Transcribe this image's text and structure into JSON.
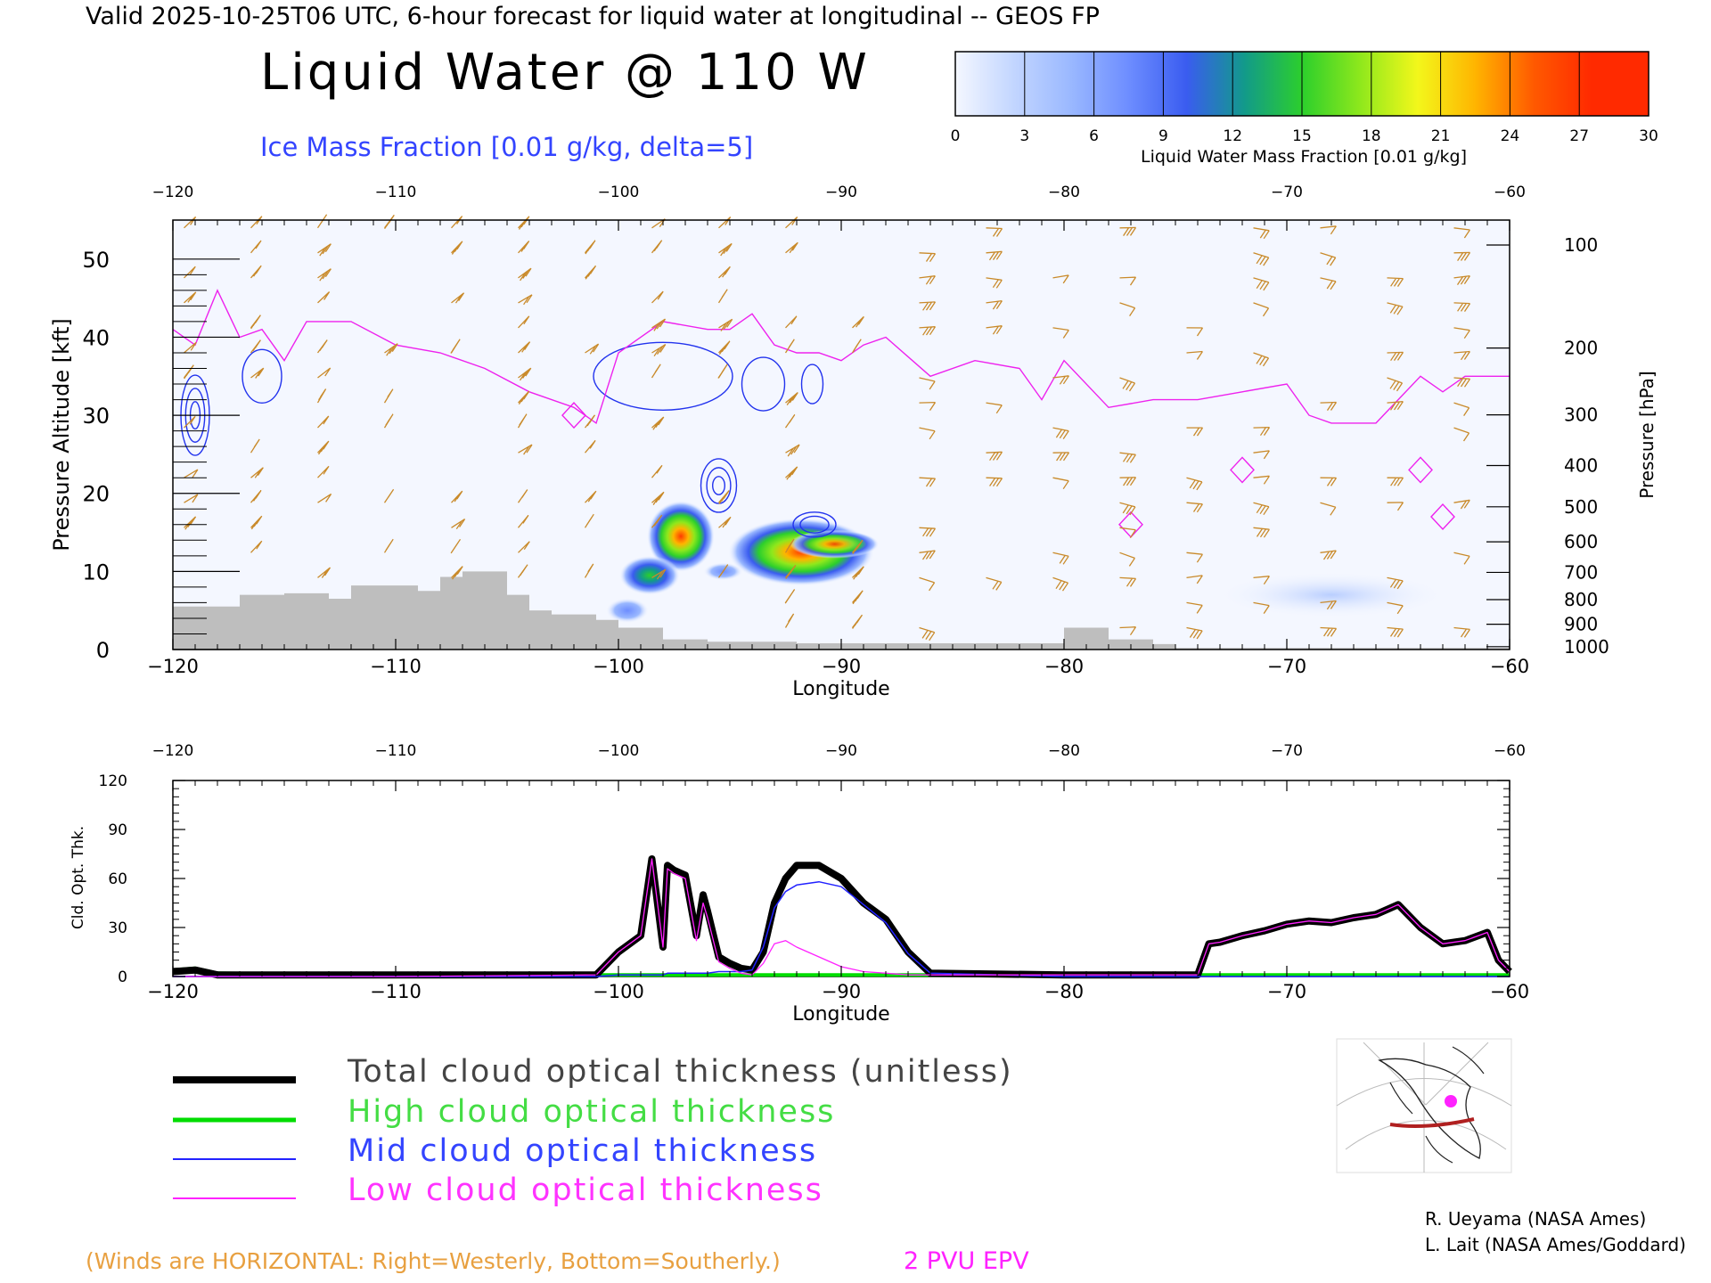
{
  "header": {
    "valid_line": "Valid 2025-10-25T06 UTC, 6-hour forecast for liquid water at longitudinal -- GEOS FP",
    "title": "Liquid Water @ 110 W",
    "ice_label": "Ice Mass Fraction [0.01 g/kg, delta=5]"
  },
  "colorbar": {
    "ticks": [
      "0",
      "3",
      "6",
      "9",
      "12",
      "15",
      "18",
      "21",
      "24",
      "27",
      "30"
    ],
    "label": "Liquid Water Mass Fraction [0.01 g/kg]",
    "colors": [
      "#f4f7ff",
      "#c3d6ff",
      "#9ab8ff",
      "#6d8dff",
      "#3a5cf0",
      "#129a8a",
      "#2ccf2c",
      "#8ee81c",
      "#f3f71b",
      "#ffb400",
      "#ff5a00"
    ]
  },
  "chart_data": [
    {
      "type": "heatmap",
      "name": "cross-section",
      "x_axis": {
        "label": "Longitude",
        "range": [
          -120,
          -60
        ],
        "ticks": [
          "−120",
          "−110",
          "−100",
          "−90",
          "−80",
          "−70",
          "−60"
        ]
      },
      "y_axis_left": {
        "label": "Pressure Altitude [kft]",
        "range": [
          0,
          55
        ],
        "ticks": [
          "0",
          "10",
          "20",
          "30",
          "40",
          "50"
        ]
      },
      "y_axis_right": {
        "label": "Pressure [hPa]",
        "ticks": [
          "100",
          "200",
          "300",
          "400",
          "500",
          "600",
          "700",
          "800",
          "900",
          "1000"
        ]
      },
      "liquid_water_blobs": [
        {
          "lon": -97.2,
          "alt": 14.5,
          "max": 24
        },
        {
          "lon": -98.6,
          "alt": 9.5,
          "max": 14
        },
        {
          "lon": -91.8,
          "alt": 12.5,
          "max": 27
        },
        {
          "lon": -99.6,
          "alt": 5,
          "max": 9
        },
        {
          "lon": -68.0,
          "alt": 7,
          "max": 5
        }
      ],
      "ice_contours": [
        {
          "lon": -119,
          "alt": 30
        },
        {
          "lon": -116,
          "alt": 35
        },
        {
          "lon": -98,
          "alt": 35
        },
        {
          "lon": -95.5,
          "alt": 21
        },
        {
          "lon": -93.5,
          "alt": 34
        },
        {
          "lon": -91.3,
          "alt": 34
        },
        {
          "lon": -91.2,
          "alt": 16
        }
      ],
      "pv2_line": {
        "lon": [
          -120,
          -119,
          -118,
          -117,
          -116,
          -115,
          -114,
          -112,
          -110,
          -108,
          -106,
          -104,
          -102,
          -101,
          -100,
          -98,
          -96,
          -95,
          -94,
          -93,
          -92,
          -91,
          -90,
          -89,
          -88,
          -86,
          -84,
          -82,
          -81,
          -80,
          -78,
          -76,
          -74,
          -72,
          -70,
          -69,
          -68,
          -66,
          -64,
          -63,
          -62,
          -60
        ],
        "alt": [
          41,
          39,
          46,
          40,
          41,
          37,
          42,
          42,
          39,
          38,
          36,
          33,
          31,
          29,
          38,
          42,
          41,
          41,
          43,
          39,
          38,
          38,
          37,
          39,
          40,
          35,
          37,
          36,
          32,
          37,
          31,
          32,
          32,
          33,
          34,
          30,
          29,
          29,
          35,
          33,
          35,
          35
        ]
      },
      "terrain": {
        "lon": [
          -120,
          -119,
          -117,
          -115,
          -113,
          -112,
          -110,
          -109,
          -108,
          -107,
          -106,
          -105,
          -104,
          -103,
          -101,
          -100,
          -98,
          -96,
          -94,
          -92,
          -88,
          -85,
          -80,
          -79,
          -78,
          -76,
          -75,
          -60
        ],
        "alt": [
          5.5,
          5.5,
          7,
          7.2,
          6.5,
          8.2,
          8.2,
          7.5,
          9.3,
          10,
          10,
          7,
          5,
          4.5,
          3.8,
          2.8,
          1.3,
          1,
          1,
          0.8,
          0.8,
          0.8,
          2.8,
          2.8,
          1.3,
          0.7,
          0.2,
          0
        ]
      },
      "wind_note": "(Winds are HORIZONTAL: Right=Westerly, Bottom=Southerly.)",
      "pv_note": "2 PVU EPV"
    },
    {
      "type": "line",
      "name": "cloud-optical-thickness",
      "x_axis": {
        "label": "Longitude",
        "range": [
          -120,
          -60
        ],
        "ticks": [
          "−120",
          "−110",
          "−100",
          "−90",
          "−80",
          "−70",
          "−60"
        ]
      },
      "y_axis": {
        "label": "Cld. Opt. Thk.",
        "range": [
          0,
          120
        ],
        "ticks": [
          "0",
          "30",
          "60",
          "90",
          "120"
        ]
      },
      "x": [
        -120,
        -119,
        -118,
        -110,
        -101,
        -100,
        -99,
        -98.5,
        -98,
        -97.8,
        -97.5,
        -97,
        -96.5,
        -96.2,
        -96,
        -95.5,
        -95,
        -94.5,
        -94,
        -93.5,
        -93,
        -92.5,
        -92,
        -91,
        -90,
        -89,
        -88,
        -87,
        -86,
        -80,
        -74,
        -73.5,
        -73,
        -72,
        -71,
        -70,
        -69,
        -68,
        -67,
        -66,
        -65,
        -64,
        -63,
        -62,
        -61,
        -60.5,
        -60
      ],
      "series": [
        {
          "name": "Total cloud optical thickness (unitless)",
          "color": "#000000",
          "values": [
            3,
            4,
            1,
            1,
            1,
            15,
            25,
            72,
            18,
            68,
            65,
            62,
            25,
            50,
            40,
            12,
            8,
            5,
            4,
            15,
            45,
            60,
            68,
            68,
            60,
            45,
            35,
            15,
            2,
            1,
            1,
            20,
            21,
            25,
            28,
            32,
            34,
            33,
            36,
            38,
            44,
            30,
            20,
            22,
            27,
            10,
            3
          ]
        },
        {
          "name": "High cloud optical thickness",
          "color": "#00dd00",
          "values": [
            4,
            5,
            2,
            1,
            1,
            1,
            1,
            1,
            1,
            1,
            1,
            1,
            1,
            1,
            1,
            1,
            1,
            1,
            1,
            1,
            1,
            1,
            1,
            1,
            1,
            1,
            1,
            1,
            1,
            1,
            1,
            1,
            1,
            1,
            1,
            1,
            1,
            1,
            1,
            1,
            1,
            1,
            1,
            1,
            1,
            1,
            1
          ]
        },
        {
          "name": "Mid cloud optical thickness",
          "color": "#2222ff",
          "values": [
            0,
            0,
            0,
            0,
            0,
            1,
            1,
            1,
            1,
            2,
            2,
            2,
            2,
            2,
            2,
            3,
            3,
            3,
            4,
            18,
            42,
            52,
            56,
            58,
            55,
            44,
            33,
            14,
            2,
            0,
            0,
            0,
            0,
            0,
            0,
            0,
            0,
            0,
            0,
            0,
            0,
            0,
            0,
            0,
            0,
            0,
            0
          ]
        },
        {
          "name": "Low cloud optical thickness",
          "color": "#ff22ff",
          "values": [
            0,
            0,
            0,
            0,
            1,
            15,
            25,
            72,
            18,
            66,
            63,
            60,
            22,
            45,
            36,
            9,
            5,
            2,
            1,
            8,
            20,
            22,
            18,
            12,
            6,
            3,
            2,
            1,
            1,
            1,
            1,
            20,
            21,
            25,
            28,
            32,
            34,
            33,
            36,
            38,
            44,
            30,
            20,
            22,
            27,
            10,
            3
          ]
        }
      ]
    }
  ],
  "legend": {
    "items": [
      {
        "label": "Total cloud optical thickness (unitless)",
        "color": "#000000",
        "text_color": "#444444"
      },
      {
        "label": "High cloud optical thickness",
        "color": "#00dd00",
        "text_color": "#44dd44"
      },
      {
        "label": "Mid cloud optical thickness",
        "color": "#2222ff",
        "text_color": "#3344ff"
      },
      {
        "label": "Low cloud optical thickness",
        "color": "#ff22ff",
        "text_color": "#ff33ff"
      }
    ]
  },
  "credits": [
    "R. Ueyama (NASA Ames)",
    "L. Lait (NASA Ames/Goddard)"
  ]
}
